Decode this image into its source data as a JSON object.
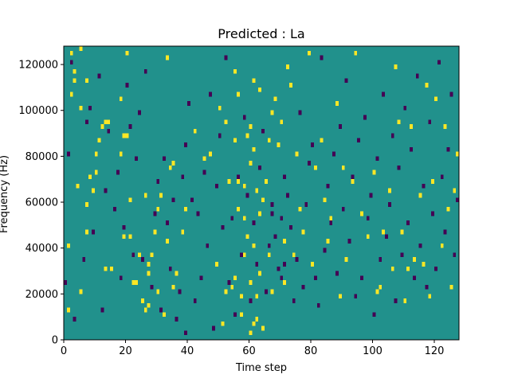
{
  "chart_data": {
    "type": "heatmap",
    "title": "Predicted : La",
    "xlabel": "Time step",
    "ylabel": "Frequency (Hz)",
    "xlim": [
      0,
      128
    ],
    "ylim": [
      0,
      128000
    ],
    "x_ticks": [
      0,
      20,
      40,
      60,
      80,
      100,
      120
    ],
    "y_ticks": [
      0,
      20000,
      40000,
      60000,
      80000,
      100000,
      120000
    ],
    "grid": false,
    "colormap": "viridis",
    "colors": {
      "background": "#21918c",
      "low": "#440154",
      "high": "#fde725"
    },
    "time_steps": 128,
    "freq_bins": 64,
    "bin_width_hz": 2000,
    "cells_high": [
      [
        1,
        6
      ],
      [
        1,
        20
      ],
      [
        2,
        53
      ],
      [
        2,
        62
      ],
      [
        3,
        56
      ],
      [
        3,
        58
      ],
      [
        4,
        33
      ],
      [
        5,
        50
      ],
      [
        5,
        63
      ],
      [
        5,
        10
      ],
      [
        7,
        23
      ],
      [
        7,
        29
      ],
      [
        7,
        56
      ],
      [
        8,
        35
      ],
      [
        9,
        32
      ],
      [
        10,
        36
      ],
      [
        10,
        40
      ],
      [
        11,
        43
      ],
      [
        12,
        46
      ],
      [
        13,
        47
      ],
      [
        13,
        15
      ],
      [
        14,
        47
      ],
      [
        15,
        15
      ],
      [
        18,
        52
      ],
      [
        18,
        40
      ],
      [
        19,
        22
      ],
      [
        19,
        44
      ],
      [
        20,
        44
      ],
      [
        20,
        62
      ],
      [
        21,
        22
      ],
      [
        21,
        30
      ],
      [
        22,
        12
      ],
      [
        23,
        12
      ],
      [
        24,
        18
      ],
      [
        25,
        8
      ],
      [
        26,
        6
      ],
      [
        26,
        31
      ],
      [
        27,
        7
      ],
      [
        27,
        14
      ],
      [
        27,
        16
      ],
      [
        28,
        18
      ],
      [
        29,
        23
      ],
      [
        30,
        10
      ],
      [
        30,
        28
      ],
      [
        31,
        31
      ],
      [
        32,
        5
      ],
      [
        33,
        21
      ],
      [
        33,
        61
      ],
      [
        34,
        37
      ],
      [
        35,
        11
      ],
      [
        35,
        38
      ],
      [
        36,
        14
      ],
      [
        38,
        23
      ],
      [
        39,
        28
      ],
      [
        42,
        45
      ],
      [
        45,
        39
      ],
      [
        47,
        40
      ],
      [
        49,
        16
      ],
      [
        50,
        50
      ],
      [
        51,
        3
      ],
      [
        52,
        10
      ],
      [
        52,
        47
      ],
      [
        53,
        34
      ],
      [
        54,
        11
      ],
      [
        55,
        13
      ],
      [
        55,
        43
      ],
      [
        56,
        28
      ],
      [
        56,
        34
      ],
      [
        57,
        9
      ],
      [
        58,
        18
      ],
      [
        58,
        26
      ],
      [
        59,
        44
      ],
      [
        60,
        1
      ],
      [
        60,
        38
      ],
      [
        60,
        46
      ],
      [
        60,
        12
      ],
      [
        61,
        3
      ],
      [
        61,
        20
      ],
      [
        61,
        41
      ],
      [
        62,
        9
      ],
      [
        62,
        4
      ],
      [
        63,
        14
      ],
      [
        63,
        27
      ],
      [
        63,
        54
      ],
      [
        64,
        30
      ],
      [
        65,
        34
      ],
      [
        66,
        43
      ],
      [
        67,
        10
      ],
      [
        68,
        52
      ],
      [
        70,
        47
      ],
      [
        71,
        21
      ],
      [
        72,
        59
      ],
      [
        74,
        18
      ],
      [
        75,
        40
      ],
      [
        77,
        23
      ],
      [
        79,
        62
      ],
      [
        80,
        16
      ],
      [
        81,
        37
      ],
      [
        83,
        43
      ],
      [
        84,
        30
      ],
      [
        85,
        21
      ],
      [
        86,
        26
      ],
      [
        88,
        51
      ],
      [
        89,
        9
      ],
      [
        90,
        37
      ],
      [
        91,
        17
      ],
      [
        93,
        34
      ],
      [
        94,
        62
      ],
      [
        96,
        27
      ],
      [
        98,
        22
      ],
      [
        100,
        36
      ],
      [
        101,
        10
      ],
      [
        102,
        11
      ],
      [
        103,
        23
      ],
      [
        105,
        32
      ],
      [
        106,
        15
      ],
      [
        107,
        59
      ],
      [
        108,
        47
      ],
      [
        109,
        23
      ],
      [
        110,
        8
      ],
      [
        111,
        15
      ],
      [
        112,
        46
      ],
      [
        113,
        17
      ],
      [
        115,
        31
      ],
      [
        116,
        16
      ],
      [
        117,
        55
      ],
      [
        118,
        9
      ],
      [
        119,
        34
      ],
      [
        120,
        52
      ],
      [
        122,
        20
      ],
      [
        123,
        46
      ],
      [
        124,
        28
      ],
      [
        125,
        11
      ],
      [
        126,
        32
      ],
      [
        127,
        40
      ],
      [
        55,
        58
      ],
      [
        56,
        53
      ],
      [
        57,
        5
      ],
      [
        58,
        33
      ],
      [
        59,
        22
      ],
      [
        61,
        56
      ],
      [
        62,
        32
      ],
      [
        64,
        2
      ],
      [
        66,
        18
      ],
      [
        67,
        49
      ],
      [
        69,
        42
      ],
      [
        71,
        12
      ],
      [
        73,
        55
      ],
      [
        76,
        28
      ]
    ],
    "cells_low": [
      [
        0,
        12
      ],
      [
        1,
        40
      ],
      [
        2,
        60
      ],
      [
        3,
        4
      ],
      [
        6,
        17
      ],
      [
        7,
        47
      ],
      [
        8,
        50
      ],
      [
        9,
        23
      ],
      [
        11,
        57
      ],
      [
        12,
        6
      ],
      [
        13,
        32
      ],
      [
        14,
        45
      ],
      [
        16,
        28
      ],
      [
        17,
        36
      ],
      [
        18,
        13
      ],
      [
        19,
        24
      ],
      [
        20,
        55
      ],
      [
        21,
        46
      ],
      [
        22,
        18
      ],
      [
        23,
        39
      ],
      [
        24,
        49
      ],
      [
        25,
        17
      ],
      [
        26,
        58
      ],
      [
        28,
        11
      ],
      [
        29,
        27
      ],
      [
        30,
        34
      ],
      [
        31,
        6
      ],
      [
        32,
        39
      ],
      [
        33,
        25
      ],
      [
        34,
        15
      ],
      [
        35,
        30
      ],
      [
        36,
        4
      ],
      [
        37,
        10
      ],
      [
        38,
        35
      ],
      [
        39,
        42
      ],
      [
        39,
        1
      ],
      [
        40,
        51
      ],
      [
        41,
        30
      ],
      [
        42,
        8
      ],
      [
        43,
        27
      ],
      [
        44,
        13
      ],
      [
        45,
        36
      ],
      [
        46,
        20
      ],
      [
        47,
        53
      ],
      [
        48,
        2
      ],
      [
        49,
        33
      ],
      [
        50,
        44
      ],
      [
        51,
        24
      ],
      [
        52,
        61
      ],
      [
        53,
        12
      ],
      [
        54,
        26
      ],
      [
        55,
        5
      ],
      [
        56,
        35
      ],
      [
        57,
        18
      ],
      [
        58,
        48
      ],
      [
        59,
        31
      ],
      [
        60,
        8
      ],
      [
        61,
        25
      ],
      [
        62,
        16
      ],
      [
        63,
        37
      ],
      [
        64,
        45
      ],
      [
        65,
        10
      ],
      [
        66,
        20
      ],
      [
        67,
        27
      ],
      [
        67,
        29
      ],
      [
        68,
        22
      ],
      [
        69,
        15
      ],
      [
        70,
        13
      ],
      [
        70,
        26
      ],
      [
        71,
        16
      ],
      [
        71,
        35
      ],
      [
        72,
        31
      ],
      [
        73,
        24
      ],
      [
        74,
        8
      ],
      [
        75,
        17
      ],
      [
        76,
        49
      ],
      [
        77,
        11
      ],
      [
        78,
        29
      ],
      [
        79,
        38
      ],
      [
        80,
        42
      ],
      [
        81,
        13
      ],
      [
        82,
        7
      ],
      [
        83,
        61
      ],
      [
        84,
        19
      ],
      [
        85,
        33
      ],
      [
        86,
        25
      ],
      [
        87,
        40
      ],
      [
        88,
        14
      ],
      [
        89,
        46
      ],
      [
        90,
        28
      ],
      [
        91,
        56
      ],
      [
        92,
        21
      ],
      [
        93,
        35
      ],
      [
        94,
        9
      ],
      [
        95,
        43
      ],
      [
        96,
        13
      ],
      [
        97,
        48
      ],
      [
        98,
        26
      ],
      [
        99,
        31
      ],
      [
        100,
        5
      ],
      [
        101,
        39
      ],
      [
        102,
        17
      ],
      [
        103,
        53
      ],
      [
        104,
        22
      ],
      [
        105,
        29
      ],
      [
        106,
        44
      ],
      [
        107,
        8
      ],
      [
        108,
        37
      ],
      [
        109,
        18
      ],
      [
        110,
        50
      ],
      [
        111,
        25
      ],
      [
        112,
        41
      ],
      [
        113,
        13
      ],
      [
        114,
        57
      ],
      [
        115,
        20
      ],
      [
        116,
        33
      ],
      [
        117,
        11
      ],
      [
        118,
        47
      ],
      [
        119,
        27
      ],
      [
        120,
        15
      ],
      [
        121,
        60
      ],
      [
        122,
        35
      ],
      [
        123,
        23
      ],
      [
        124,
        41
      ],
      [
        125,
        53
      ],
      [
        126,
        18
      ],
      [
        127,
        30
      ]
    ]
  }
}
